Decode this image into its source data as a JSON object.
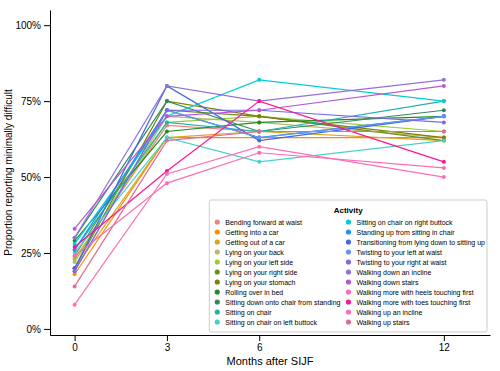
{
  "chart_data": {
    "type": "line",
    "marker": "circle",
    "x": [
      0,
      3,
      6,
      12
    ],
    "series": [
      {
        "name": "Bending forward at waist",
        "color": "#F08080",
        "values": [
          0.23,
          0.67,
          0.65,
          0.65
        ]
      },
      {
        "name": "Getting into a car",
        "color": "#FF8C00",
        "values": [
          0.18,
          0.63,
          0.63,
          0.63
        ]
      },
      {
        "name": "Getting out of a car",
        "color": "#DAA520",
        "values": [
          0.2,
          0.63,
          0.65,
          0.62
        ]
      },
      {
        "name": "Lying on your back",
        "color": "#BDB76B",
        "values": [
          0.22,
          0.7,
          0.68,
          0.63
        ]
      },
      {
        "name": "Lying on your left side",
        "color": "#9ACD32",
        "values": [
          0.23,
          0.68,
          0.7,
          0.65
        ]
      },
      {
        "name": "Lying on your right side",
        "color": "#6B8E23",
        "values": [
          0.24,
          0.72,
          0.7,
          0.62
        ]
      },
      {
        "name": "Lying on your stomach",
        "color": "#808000",
        "values": [
          0.2,
          0.75,
          0.7,
          0.63
        ]
      },
      {
        "name": "Rolling over in bed",
        "color": "#228B22",
        "values": [
          0.29,
          0.65,
          0.68,
          0.7
        ]
      },
      {
        "name": "Sitting down onto chair from standing",
        "color": "#2E8B57",
        "values": [
          0.3,
          0.75,
          0.65,
          0.72
        ]
      },
      {
        "name": "Sitting on chair",
        "color": "#20B2AA",
        "values": [
          0.26,
          0.68,
          0.65,
          0.75
        ]
      },
      {
        "name": "Sitting on chair on left buttock",
        "color": "#48D1CC",
        "values": [
          0.25,
          0.63,
          0.55,
          0.62
        ]
      },
      {
        "name": "Sitting on chair on right buttock",
        "color": "#00CED1",
        "values": [
          0.28,
          0.7,
          0.82,
          0.75
        ]
      },
      {
        "name": "Standing up from sitting in chair",
        "color": "#1E90FF",
        "values": [
          0.26,
          0.72,
          0.63,
          0.7
        ]
      },
      {
        "name": "Transitioning from lying down to sitting up",
        "color": "#4169E1",
        "values": [
          0.2,
          0.8,
          0.62,
          0.7
        ]
      },
      {
        "name": "Twisting to your left at waist",
        "color": "#6495ED",
        "values": [
          0.19,
          0.72,
          0.63,
          0.7
        ]
      },
      {
        "name": "Twisting to your right at waist",
        "color": "#7B68EE",
        "values": [
          0.19,
          0.72,
          0.72,
          0.68
        ]
      },
      {
        "name": "Walking down an incline",
        "color": "#9370DB",
        "values": [
          0.3,
          0.8,
          0.75,
          0.82
        ]
      },
      {
        "name": "Walking down stairs",
        "color": "#BA55D3",
        "values": [
          0.33,
          0.7,
          0.72,
          0.8
        ]
      },
      {
        "name": "Walking more with heels touching first",
        "color": "#FF69B4",
        "values": [
          0.24,
          0.48,
          0.58,
          0.53
        ]
      },
      {
        "name": "Walking more with toes touching first",
        "color": "#FF1493",
        "values": [
          0.27,
          0.52,
          0.75,
          0.55
        ]
      },
      {
        "name": "Walking up an incline",
        "color": "#FF6EB4",
        "values": [
          0.08,
          0.51,
          0.6,
          0.5
        ]
      },
      {
        "name": "Walking up stairs",
        "color": "#DB7093",
        "values": [
          0.14,
          0.62,
          0.65,
          0.65
        ]
      }
    ],
    "xlabel": "Months after SIJF",
    "ylabel": "Proportion reporting minimally difficult",
    "xlim": [
      -0.8,
      13.5
    ],
    "ylim": [
      -0.02,
      1.05
    ],
    "xticks": [
      0,
      3,
      6,
      12
    ],
    "yticks": [
      {
        "value": 0.0,
        "label": "0%"
      },
      {
        "value": 0.25,
        "label": "25%"
      },
      {
        "value": 0.5,
        "label": "50%"
      },
      {
        "value": 0.75,
        "label": "75%"
      },
      {
        "value": 1.0,
        "label": "100%"
      }
    ],
    "legend": "lower right",
    "legend_title": "Activity",
    "grid": false
  }
}
